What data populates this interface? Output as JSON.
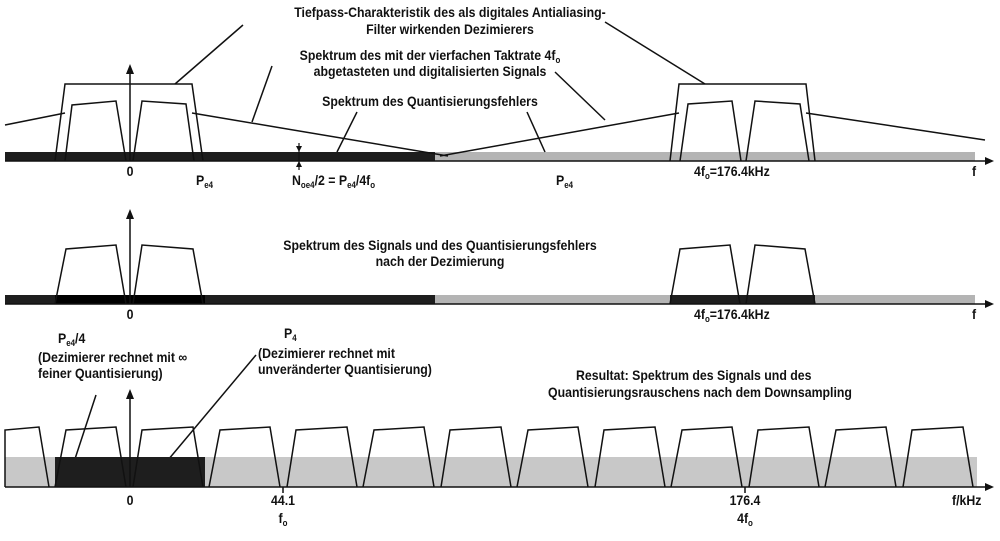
{
  "panel1": {
    "title_line1": "Tiefpass-Charakteristik des als digitales Antialiasing-",
    "title_line2": "Filter wirkenden Dezimierers",
    "signal_line1": "Spektrum des mit der vierfachen Taktrate 4f",
    "signal_line1_sub": "o",
    "signal_line2": "abgetasteten und digitalisierten Signals",
    "quant_error": "Spektrum des Quantisierungsfehlers",
    "zero": "0",
    "pe4_left": "P",
    "pe4_left_sub": "e4",
    "noise_formula_a": "N",
    "noise_formula_a_sub": "oe4",
    "noise_formula_b": "/2 = P",
    "noise_formula_b_sub": "e4",
    "noise_formula_c": "/4f",
    "noise_formula_c_sub": "o",
    "pe4_right": "P",
    "pe4_right_sub": "e4",
    "freq_a": "4f",
    "freq_a_sub": "o",
    "freq_b": "=176.4kHz",
    "axis": "f"
  },
  "panel2": {
    "title_line1": "Spektrum des Signals und des Quantisierungsfehlers",
    "title_line2": "nach der Dezimierung",
    "zero": "0",
    "freq_a": "4f",
    "freq_a_sub": "o",
    "freq_b": "=176.4kHz",
    "axis": "f",
    "pe4_quarter_a": "P",
    "pe4_quarter_sub": "e4",
    "pe4_quarter_b": "/4",
    "note_left_line1": "(Dezimierer rechnet mit ∞",
    "note_left_line2": "feiner Quantisierung)",
    "pe4": "P",
    "pe4_sub": "4",
    "note_right_line1": "(Dezimierer rechnet mit",
    "note_right_line2": "unveränderter Quantisierung)"
  },
  "panel3": {
    "result_line1": "Resultat: Spektrum des Signals und des",
    "result_line2": "Quantisierungsrauschens nach dem Downsampling",
    "zero": "0",
    "tick_441": "44.1",
    "tick_441_sub_a": "f",
    "tick_441_sub_b": "o",
    "tick_1764": "176.4",
    "tick_1764_sub_a": "4f",
    "tick_1764_sub_b": "o",
    "axis": "f/kHz"
  },
  "colors": {
    "ink": "#111111",
    "dark_band": "#1e1e1e",
    "light_band": "#b4b4b4",
    "noise_fill": "#c8c8c8"
  }
}
